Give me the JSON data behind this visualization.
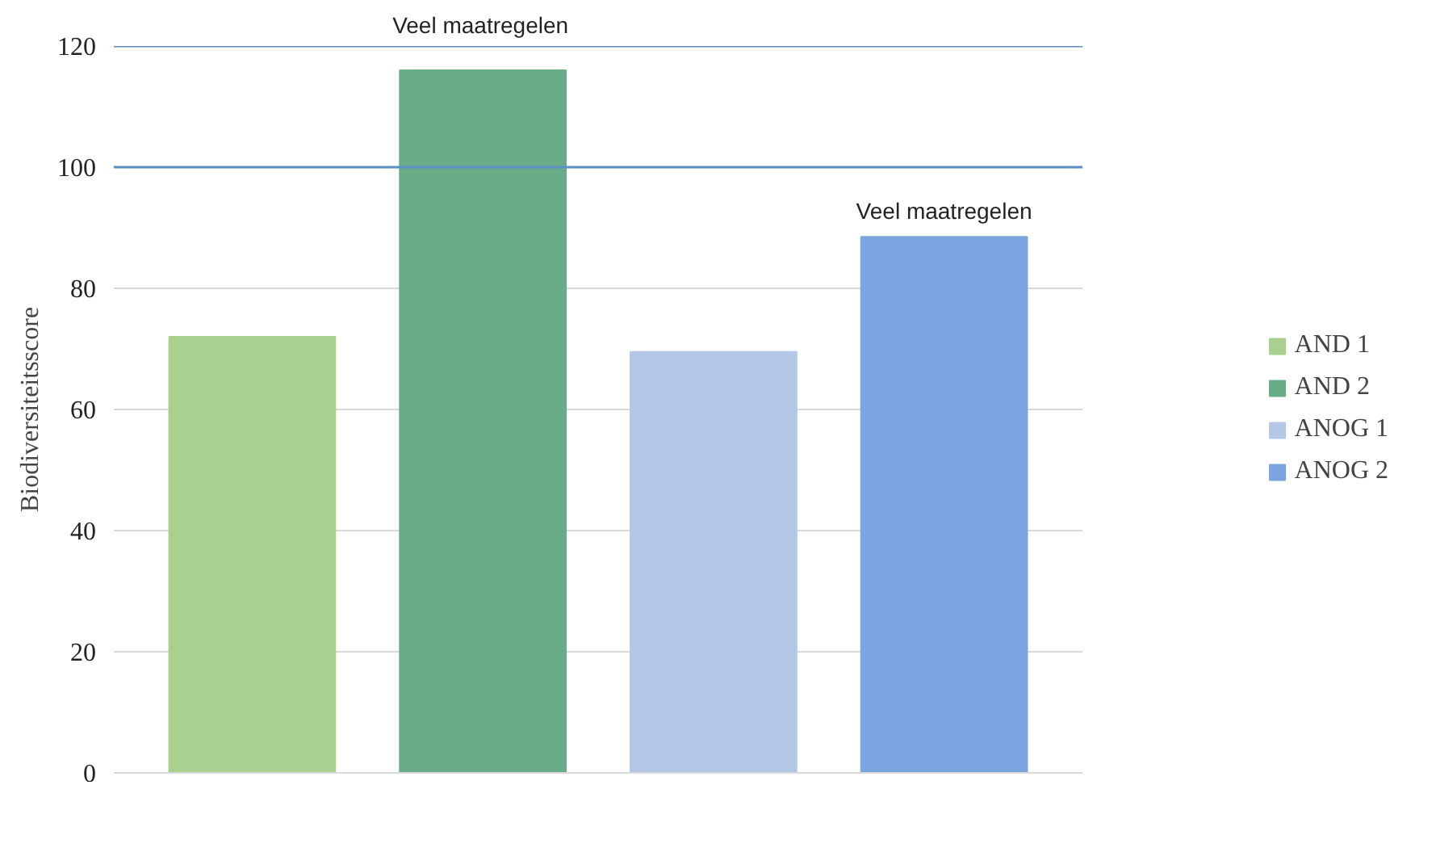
{
  "chart_data": {
    "type": "bar",
    "ylabel": "Biodiversiteitsscore",
    "categories": [
      null,
      null,
      null,
      null
    ],
    "series": [
      {
        "name": "AND 1",
        "color": "#a9d08e",
        "values": [
          72,
          null,
          null,
          null
        ]
      },
      {
        "name": "AND 2",
        "color": "#6aab88",
        "values": [
          null,
          116,
          null,
          null
        ]
      },
      {
        "name": "ANOG 1",
        "color": "#b4c7e7",
        "values": [
          null,
          null,
          69.5,
          null
        ]
      },
      {
        "name": "ANOG 2",
        "color": "#7ba5e0",
        "values": [
          null,
          null,
          null,
          88.5
        ]
      }
    ],
    "ylim": [
      0,
      120
    ],
    "yticks": [
      0,
      20,
      40,
      60,
      80,
      100,
      120
    ],
    "grid": "y",
    "legend": "right",
    "ref_lines": [
      {
        "axis": "y",
        "value": 100,
        "color": "#5b8fc7"
      },
      {
        "axis": "y",
        "value": 120,
        "color": "#5b8fc7"
      }
    ],
    "annotations": [
      "Veel maatregelen",
      "Veel maatregelen"
    ]
  }
}
